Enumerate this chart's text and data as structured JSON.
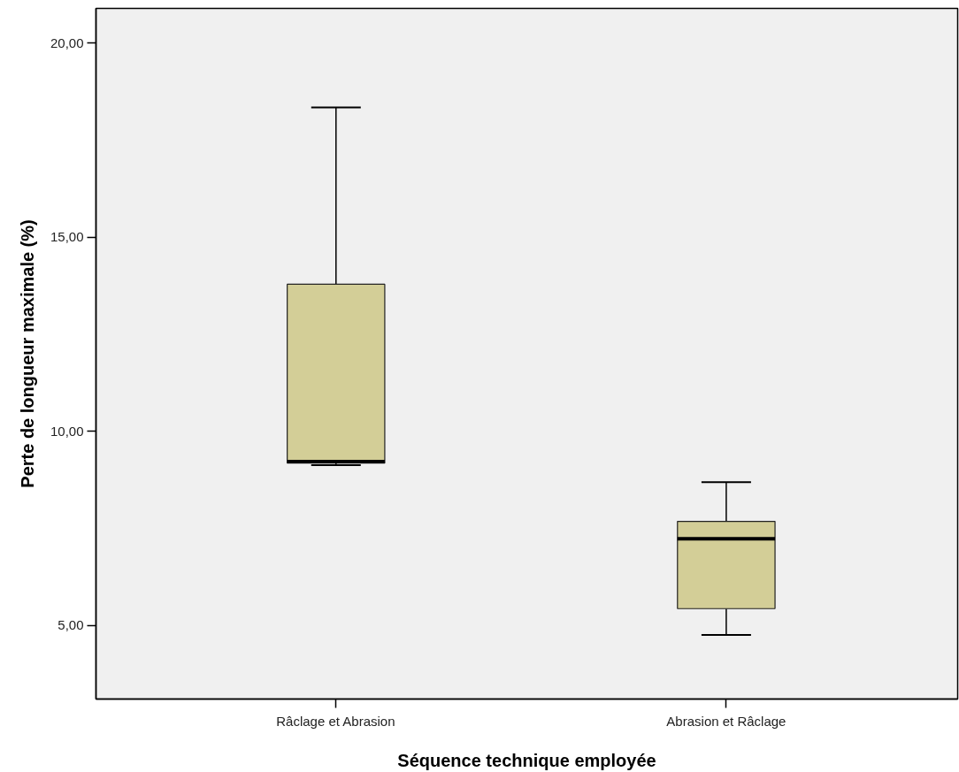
{
  "chart_data": {
    "type": "box",
    "xlabel": "Séquence technique employée",
    "ylabel": "Perte de longueur maximale (%)",
    "categories": [
      "Râclage et Abrasion",
      "Abrasion et Râclage"
    ],
    "series": [
      {
        "color": "#d3ce97",
        "boxes": [
          {
            "low": 9.13,
            "q1": 9.18,
            "median": 9.22,
            "q3": 13.79,
            "high": 18.35
          },
          {
            "low": 4.75,
            "q1": 5.43,
            "median": 7.23,
            "q3": 7.68,
            "high": 8.69
          }
        ]
      }
    ],
    "ylim": [
      3.1,
      20.9
    ],
    "yticks": [
      {
        "value": 5,
        "label": "5,00"
      },
      {
        "value": 10,
        "label": "10,00"
      },
      {
        "value": 15,
        "label": "15,00"
      },
      {
        "value": 20,
        "label": "20,00"
      }
    ]
  }
}
